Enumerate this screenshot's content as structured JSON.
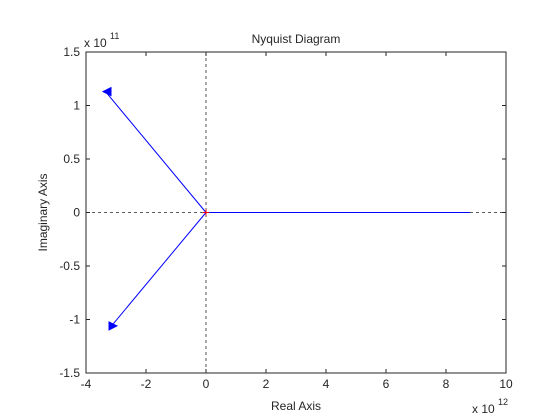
{
  "chart_data": {
    "type": "line",
    "title": "Nyquist Diagram",
    "xlabel": "Real Axis",
    "ylabel": "Imaginary Axis",
    "x_exponent": {
      "base": "x 10",
      "power": "12"
    },
    "y_exponent": {
      "base": "x 10",
      "power": "11"
    },
    "xlim": [
      -4,
      10
    ],
    "ylim": [
      -1.5,
      1.5
    ],
    "x_ticks": [
      -4,
      -2,
      0,
      2,
      4,
      6,
      8,
      10
    ],
    "x_tick_labels": [
      "-4",
      "-2",
      "0",
      "2",
      "4",
      "6",
      "8",
      "10"
    ],
    "y_ticks": [
      -1.5,
      -1,
      -0.5,
      0,
      0.5,
      1,
      1.5
    ],
    "y_tick_labels": [
      "-1.5",
      "-1",
      "-0.5",
      "0",
      "0.5",
      "1",
      "1.5"
    ],
    "grid": false,
    "reference_lines": {
      "x": 0,
      "y": 0,
      "style": "dashed"
    },
    "critical_point": {
      "x": 0,
      "y": 0,
      "marker": "+",
      "color": "#ff0000"
    },
    "colors": {
      "curve": "#0000ff",
      "axes": "#262626",
      "reference": "#262626"
    },
    "series": [
      {
        "segments": [
          {
            "x": [
              0,
              8.8
            ],
            "y": [
              0,
              0
            ]
          },
          {
            "x": [
              0,
              -3.35
            ],
            "y": [
              0,
              1.13
            ],
            "arrow_at": {
              "x": -3.3,
              "y": 1.13,
              "direction": "left"
            }
          },
          {
            "x": [
              0,
              -3.15
            ],
            "y": [
              0,
              -1.06
            ],
            "arrow_at": {
              "x": -3.1,
              "y": -1.06,
              "direction": "right"
            }
          }
        ]
      }
    ]
  }
}
